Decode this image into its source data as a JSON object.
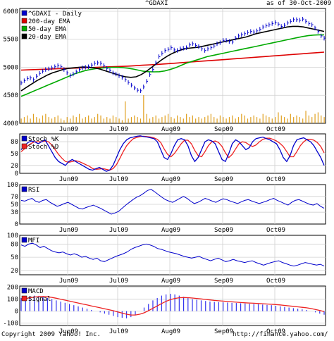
{
  "header": {
    "symbol": "^GDAXI",
    "asof": "as of 30-Oct-2009"
  },
  "footer": {
    "copyright": "Copyright 2009 Yahoo! Inc.",
    "url": "http://finance.yahoo.com/"
  },
  "colors": {
    "price": "#0000cc",
    "ema200": "#dd0000",
    "ema50": "#00aa00",
    "ema20": "#000000",
    "volume": "#e0a020",
    "grid": "#d0d0d0",
    "stochK": "#0000cc",
    "stochD": "#ee2222",
    "macd": "#0000cc",
    "signal": "#ee2222",
    "hist": "#3333ee"
  },
  "chart_data": [
    {
      "type": "line",
      "title": "^GDAXI",
      "months": [
        "Jun09",
        "Jul09",
        "Aug09",
        "Sep09",
        "Oct09"
      ],
      "yticks": [
        6000,
        5500,
        5000,
        4500,
        4000
      ],
      "ylim": [
        4000,
        6050
      ],
      "grid": true,
      "series": [
        {
          "name": "^GDAXI - Daily",
          "color_key": "price",
          "values": [
            4720,
            4760,
            4800,
            4810,
            4780,
            4840,
            4890,
            4930,
            4960,
            4970,
            4990,
            5010,
            5030,
            5010,
            4960,
            4900,
            4850,
            4880,
            4920,
            4960,
            4990,
            5000,
            5010,
            5040,
            5070,
            5080,
            5070,
            5030,
            4980,
            4940,
            4900,
            4880,
            4850,
            4820,
            4780,
            4730,
            4680,
            4630,
            4590,
            4580,
            4650,
            4750,
            4870,
            4960,
            5080,
            5190,
            5250,
            5300,
            5320,
            5350,
            5310,
            5300,
            5330,
            5340,
            5350,
            5400,
            5420,
            5390,
            5370,
            5330,
            5300,
            5330,
            5350,
            5380,
            5420,
            5440,
            5480,
            5480,
            5460,
            5450,
            5520,
            5560,
            5580,
            5600,
            5620,
            5640,
            5630,
            5650,
            5680,
            5720,
            5740,
            5760,
            5780,
            5800,
            5770,
            5730,
            5750,
            5790,
            5820,
            5850,
            5850,
            5840,
            5860,
            5820,
            5780,
            5760,
            5700,
            5640,
            5560,
            5520
          ]
        },
        {
          "name": "200-day EMA",
          "color_key": "ema200",
          "values": [
            4950,
            4955,
            4960,
            4965,
            4970,
            4975,
            4980,
            4985,
            4990,
            4995,
            5000,
            5005,
            5010,
            5015,
            5020,
            5028,
            5036,
            5044,
            5052,
            5060,
            5070,
            5080,
            5090,
            5100,
            5110,
            5120,
            5130,
            5140,
            5150,
            5160,
            5170,
            5180,
            5190,
            5200,
            5210,
            5220,
            5230,
            5240,
            5250,
            5260,
            5270
          ]
        },
        {
          "name": "50-day EMA",
          "color_key": "ema50",
          "values": [
            4480,
            4520,
            4560,
            4600,
            4640,
            4680,
            4720,
            4760,
            4800,
            4840,
            4880,
            4910,
            4940,
            4960,
            4975,
            4985,
            4992,
            4998,
            5000,
            4995,
            4985,
            4970,
            4950,
            4930,
            4920,
            4918,
            4920,
            4935,
            4960,
            4990,
            5030,
            5070,
            5100,
            5130,
            5160,
            5190,
            5210,
            5230,
            5250,
            5270,
            5290,
            5310,
            5330,
            5350,
            5370,
            5390,
            5410,
            5430,
            5450,
            5470,
            5490,
            5510,
            5530,
            5550,
            5565,
            5575,
            5580,
            5578
          ]
        },
        {
          "name": "20-day EMA",
          "color_key": "ema20",
          "values": [
            4580,
            4640,
            4700,
            4760,
            4810,
            4860,
            4900,
            4930,
            4960,
            4980,
            4990,
            5000,
            5005,
            5000,
            4990,
            4970,
            4940,
            4910,
            4880,
            4850,
            4830,
            4820,
            4830,
            4870,
            4930,
            5000,
            5070,
            5140,
            5200,
            5250,
            5290,
            5320,
            5340,
            5350,
            5360,
            5380,
            5400,
            5420,
            5440,
            5460,
            5480,
            5500,
            5520,
            5540,
            5570,
            5600,
            5620,
            5640,
            5660,
            5680,
            5700,
            5720,
            5730,
            5730,
            5720,
            5700,
            5680,
            5660,
            5640
          ]
        }
      ],
      "volume": [
        3,
        4,
        5,
        3,
        6,
        4,
        3,
        5,
        6,
        4,
        3,
        4,
        5,
        3,
        2,
        4,
        3,
        5,
        4,
        6,
        3,
        4,
        5,
        3,
        4,
        6,
        5,
        3,
        4,
        3,
        5,
        4,
        3,
        2,
        14,
        3,
        4,
        5,
        4,
        3,
        18,
        6,
        3,
        4,
        5,
        3,
        4,
        5,
        6,
        4,
        3,
        5,
        4,
        3,
        6,
        4,
        5,
        3,
        4,
        3,
        4,
        5,
        6,
        4,
        3,
        5,
        4,
        3,
        4,
        5,
        3,
        4,
        6,
        5,
        3,
        4,
        5,
        4,
        3,
        6,
        5,
        4,
        3,
        4,
        7,
        5,
        4,
        3,
        6,
        4,
        5,
        4,
        3,
        8,
        5,
        4,
        6,
        7,
        5,
        4
      ],
      "yticks_vol_label": "4000"
    },
    {
      "type": "line",
      "title": "Stoch",
      "months": [
        "Jun09",
        "Jul09",
        "Aug09",
        "Sep09",
        "Oct09"
      ],
      "yticks": [
        80,
        50,
        20,
        0
      ],
      "ylim": [
        0,
        100
      ],
      "grid": true,
      "series": [
        {
          "name": "Stoch %K",
          "color_key": "stochK",
          "values": [
            60,
            70,
            78,
            82,
            80,
            75,
            80,
            85,
            70,
            55,
            40,
            30,
            25,
            20,
            30,
            35,
            30,
            25,
            20,
            15,
            10,
            8,
            12,
            15,
            10,
            5,
            8,
            20,
            40,
            60,
            75,
            85,
            90,
            92,
            94,
            95,
            93,
            92,
            90,
            88,
            80,
            60,
            40,
            35,
            50,
            70,
            85,
            88,
            85,
            70,
            45,
            30,
            40,
            60,
            80,
            85,
            82,
            75,
            55,
            35,
            30,
            50,
            75,
            85,
            80,
            70,
            60,
            65,
            80,
            88,
            90,
            92,
            88,
            85,
            80,
            75,
            60,
            40,
            30,
            45,
            70,
            85,
            88,
            90,
            85,
            80,
            70,
            55,
            40,
            20
          ]
        },
        {
          "name": "Stoch %D",
          "color_key": "stochD",
          "values": [
            55,
            62,
            70,
            76,
            80,
            80,
            80,
            82,
            80,
            72,
            60,
            48,
            38,
            30,
            28,
            30,
            32,
            30,
            26,
            22,
            18,
            12,
            10,
            11,
            12,
            10,
            8,
            12,
            22,
            38,
            55,
            70,
            80,
            88,
            91,
            93,
            94,
            93,
            92,
            90,
            86,
            78,
            62,
            48,
            42,
            50,
            62,
            75,
            84,
            84,
            75,
            58,
            45,
            42,
            55,
            70,
            80,
            82,
            78,
            68,
            52,
            40,
            48,
            62,
            75,
            80,
            78,
            72,
            68,
            72,
            80,
            86,
            89,
            89,
            86,
            82,
            76,
            68,
            55,
            42,
            42,
            55,
            70,
            80,
            86,
            86,
            84,
            78,
            68,
            52
          ]
        }
      ]
    },
    {
      "type": "line",
      "title": "RSI",
      "months": [
        "Jun09",
        "Jul09",
        "Aug09",
        "Sep09",
        "Oct09"
      ],
      "yticks": [
        100,
        70,
        50,
        30,
        0
      ],
      "ylim": [
        0,
        100
      ],
      "grid": true,
      "series": [
        {
          "name": "RSI",
          "color_key": "stochK",
          "values": [
            60,
            58,
            62,
            65,
            58,
            55,
            60,
            62,
            55,
            50,
            45,
            48,
            52,
            55,
            50,
            45,
            40,
            38,
            42,
            45,
            48,
            44,
            40,
            35,
            30,
            25,
            28,
            32,
            40,
            48,
            55,
            62,
            68,
            72,
            78,
            85,
            88,
            82,
            75,
            68,
            62,
            58,
            55,
            60,
            65,
            70,
            65,
            58,
            52,
            55,
            60,
            65,
            62,
            58,
            55,
            60,
            64,
            62,
            58,
            55,
            52,
            56,
            60,
            62,
            58,
            55,
            52,
            55,
            58,
            62,
            65,
            60,
            56,
            52,
            48,
            55,
            60,
            62,
            58,
            54,
            50,
            48,
            52,
            45,
            40
          ]
        }
      ]
    },
    {
      "type": "line",
      "title": "MFI",
      "months": [
        "Jun09",
        "Jul09",
        "Aug09",
        "Sep09",
        "Oct09"
      ],
      "yticks": [
        100,
        80,
        50,
        20
      ],
      "ylim": [
        10,
        100
      ],
      "grid": true,
      "series": [
        {
          "name": "MFI",
          "color_key": "stochK",
          "values": [
            78,
            75,
            80,
            82,
            78,
            72,
            75,
            70,
            65,
            62,
            60,
            62,
            58,
            55,
            58,
            55,
            50,
            52,
            48,
            45,
            48,
            42,
            40,
            44,
            48,
            52,
            55,
            58,
            62,
            68,
            72,
            75,
            78,
            80,
            78,
            75,
            70,
            68,
            65,
            62,
            60,
            58,
            55,
            52,
            50,
            48,
            50,
            52,
            48,
            45,
            42,
            45,
            48,
            44,
            40,
            42,
            45,
            42,
            40,
            38,
            40,
            42,
            38,
            35,
            32,
            35,
            38,
            40,
            42,
            38,
            35,
            32,
            30,
            32,
            35,
            38,
            36,
            34,
            32,
            34,
            30
          ]
        }
      ]
    },
    {
      "type": "line",
      "title": "MACD",
      "months": [
        "Jun09",
        "Jul09",
        "Aug09",
        "Sep09",
        "Oct09"
      ],
      "yticks": [
        200,
        100,
        0,
        -100
      ],
      "ylim": [
        -120,
        210
      ],
      "grid": true,
      "series": [
        {
          "name": "MACD",
          "color_key": "macd",
          "values": [
            110,
            120,
            125,
            130,
            128,
            120,
            110,
            100,
            90,
            80,
            70,
            60,
            50,
            40,
            30,
            20,
            10,
            0,
            -10,
            -20,
            -30,
            -40,
            -50,
            -55,
            -60,
            -50,
            -30,
            0,
            30,
            60,
            90,
            110,
            130,
            140,
            145,
            140,
            130,
            120,
            110,
            100,
            95,
            90,
            85,
            80,
            78,
            76,
            74,
            72,
            70,
            68,
            66,
            64,
            62,
            60,
            58,
            55,
            52,
            50,
            45,
            40,
            35,
            30,
            25,
            20,
            15,
            10,
            0,
            -10,
            -20,
            -30
          ]
        },
        {
          "name": "Signal",
          "color_key": "signal",
          "values": [
            100,
            105,
            112,
            118,
            122,
            123,
            120,
            115,
            108,
            100,
            92,
            84,
            76,
            68,
            60,
            52,
            44,
            36,
            28,
            20,
            12,
            4,
            -6,
            -16,
            -26,
            -32,
            -32,
            -26,
            -14,
            4,
            24,
            44,
            64,
            82,
            96,
            106,
            112,
            114,
            113,
            110,
            106,
            102,
            98,
            94,
            90,
            87,
            84,
            81,
            78,
            75,
            72,
            70,
            68,
            66,
            64,
            62,
            60,
            58,
            55,
            52,
            48,
            44,
            40,
            36,
            32,
            28,
            22,
            14,
            6,
            -4
          ]
        }
      ]
    }
  ]
}
